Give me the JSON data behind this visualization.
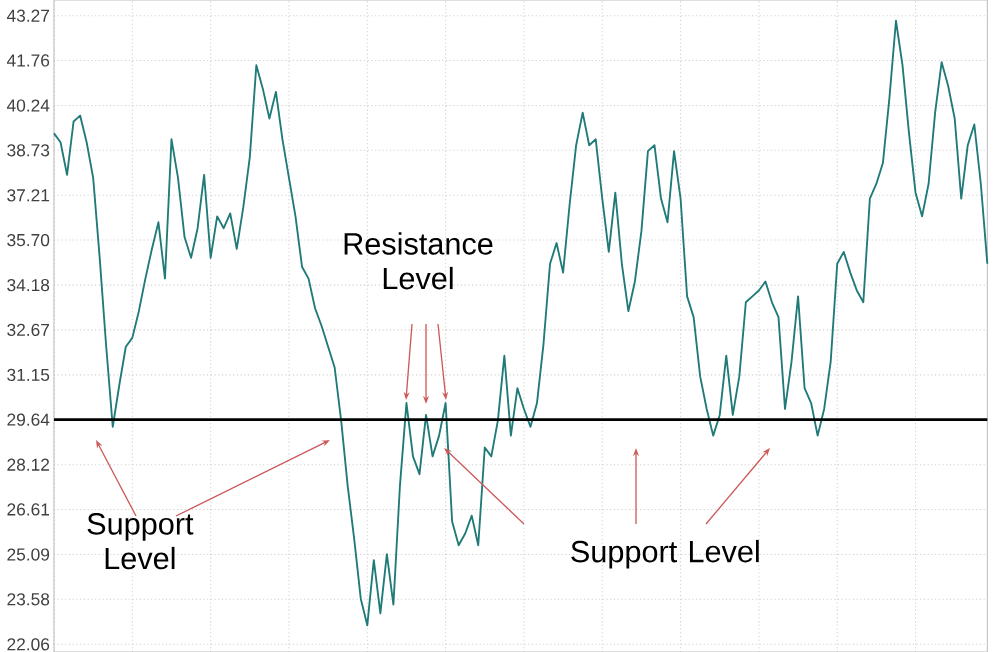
{
  "chart_data": {
    "type": "line",
    "categories": [
      null,
      null,
      null,
      null,
      null,
      null,
      null,
      null,
      null,
      null,
      null,
      null,
      null,
      null,
      null,
      null,
      null,
      null,
      null,
      null,
      null,
      null,
      null,
      null,
      null,
      null,
      null,
      null,
      null,
      null,
      null,
      null,
      null,
      null,
      null,
      null,
      null,
      null,
      null,
      null,
      null,
      null,
      null,
      null,
      null,
      null,
      null,
      null,
      null,
      null,
      null,
      null,
      null,
      null,
      null,
      null,
      null,
      null,
      null,
      null,
      null,
      null,
      null,
      null,
      null,
      null,
      null,
      null,
      null,
      null,
      null,
      null,
      null,
      null,
      null,
      null,
      null,
      null,
      null,
      null,
      null,
      null,
      null,
      null,
      null,
      null,
      null,
      null,
      null,
      null,
      null,
      null,
      null,
      null,
      null,
      null,
      null,
      null,
      null,
      null,
      null,
      null,
      null,
      null,
      null,
      null,
      null,
      null,
      null,
      null,
      null,
      null,
      null,
      null,
      null,
      null,
      null,
      null,
      null,
      null,
      null,
      null,
      null,
      null,
      null,
      null,
      null,
      null,
      null,
      null,
      null,
      null,
      null,
      null,
      null,
      null,
      null,
      null,
      null,
      null,
      null,
      null,
      null,
      null
    ],
    "series": [
      {
        "color": "#1f7a78",
        "values": [
          39.3,
          39.0,
          37.9,
          39.7,
          39.9,
          39.0,
          37.8,
          35.1,
          32.1,
          29.4,
          30.8,
          32.1,
          32.4,
          33.3,
          34.4,
          35.4,
          36.3,
          34.4,
          39.1,
          37.8,
          35.8,
          35.1,
          36.1,
          37.9,
          35.1,
          36.5,
          36.1,
          36.6,
          35.4,
          36.8,
          38.5,
          41.6,
          40.8,
          39.8,
          40.7,
          39.1,
          37.8,
          36.5,
          34.8,
          34.4,
          33.4,
          32.8,
          32.1,
          31.4,
          29.6,
          27.4,
          25.6,
          23.6,
          22.7,
          24.9,
          23.1,
          25.1,
          23.4,
          27.4,
          30.2,
          28.4,
          27.8,
          29.8,
          28.4,
          29.1,
          30.2,
          26.2,
          25.4,
          25.8,
          26.4,
          25.4,
          28.7,
          28.4,
          29.6,
          31.8,
          29.1,
          30.7,
          30.0,
          29.4,
          30.2,
          32.2,
          34.9,
          35.6,
          34.6,
          36.9,
          38.9,
          40.0,
          38.9,
          39.1,
          37.1,
          35.3,
          37.3,
          34.9,
          33.3,
          34.3,
          36.0,
          38.7,
          38.9,
          37.1,
          36.3,
          38.7,
          37.1,
          33.8,
          33.1,
          31.1,
          30.0,
          29.1,
          29.8,
          31.8,
          29.8,
          31.1,
          33.6,
          33.8,
          34.0,
          34.3,
          33.6,
          33.1,
          30.0,
          31.6,
          33.8,
          30.7,
          30.2,
          29.1,
          30.0,
          31.6,
          34.9,
          35.3,
          34.6,
          34.0,
          33.6,
          37.1,
          37.6,
          38.3,
          40.5,
          43.1,
          41.6,
          39.3,
          37.3,
          36.5,
          37.6,
          40.0,
          41.7,
          40.9,
          39.8,
          37.1,
          38.9,
          39.6,
          37.6,
          34.9
        ]
      }
    ],
    "ylim": [
      21.8,
      43.8
    ],
    "yticks": [
      22.06,
      23.58,
      25.09,
      26.61,
      28.12,
      29.64,
      31.15,
      32.67,
      34.18,
      {
        "value": 35.7,
        "label": "35.70"
      },
      37.21,
      38.73,
      40.24,
      41.76,
      43.27
    ],
    "grid": true,
    "tick_labels": "y",
    "marker": "none",
    "line_style": "solid",
    "ref_lines": [
      {
        "axis": "y",
        "value": 29.64,
        "color": "#000000"
      }
    ],
    "annotations": [
      "Resistance Level",
      "Support Level",
      "Support Level"
    ]
  }
}
